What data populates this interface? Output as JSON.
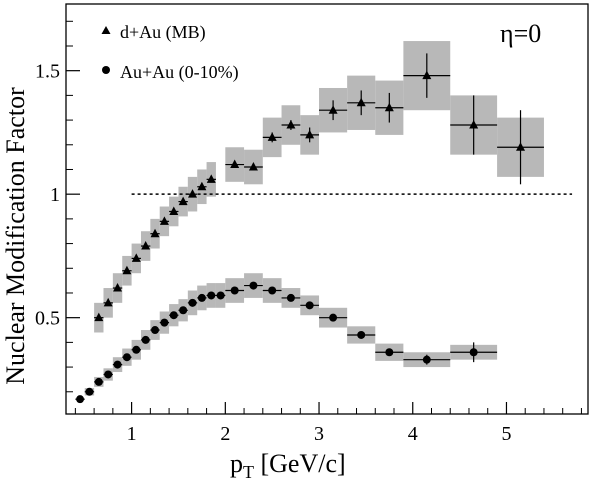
{
  "chart_data": {
    "type": "scatter",
    "title": "",
    "annotation": "η=0",
    "xlabel": {
      "main": "p",
      "sub": "T",
      "rest": " [GeV/c]"
    },
    "ylabel": "Nuclear Modification Factor",
    "xlim": [
      0.3,
      5.87
    ],
    "ylim": [
      0.11,
      1.77
    ],
    "x_ticks": [
      {
        "v": 1,
        "label": "1"
      },
      {
        "v": 2,
        "label": "2"
      },
      {
        "v": 3,
        "label": "3"
      },
      {
        "v": 4,
        "label": "4"
      },
      {
        "v": 5,
        "label": "5"
      }
    ],
    "y_ticks": [
      {
        "v": 0.5,
        "label": "0.5"
      },
      {
        "v": 1.0,
        "label": "1"
      },
      {
        "v": 1.5,
        "label": "1.5"
      }
    ],
    "reference_line": {
      "y": 1.0,
      "x_from": 1.0,
      "x_to": 5.7,
      "style": "dotted"
    },
    "colors": {
      "marker": "#000000",
      "band": "#b8b8b8",
      "frame": "#000000"
    },
    "legend": {
      "placement": "top-left"
    },
    "series": [
      {
        "name": "d+Au (MB)",
        "marker": "triangle",
        "points": [
          {
            "x": 0.65,
            "y": 0.5,
            "xerr": 0.05,
            "yerr": 0.0,
            "sys": 0.06
          },
          {
            "x": 0.75,
            "y": 0.56,
            "xerr": 0.05,
            "yerr": 0.0,
            "sys": 0.06
          },
          {
            "x": 0.85,
            "y": 0.62,
            "xerr": 0.05,
            "yerr": 0.0,
            "sys": 0.06
          },
          {
            "x": 0.95,
            "y": 0.69,
            "xerr": 0.05,
            "yerr": 0.0,
            "sys": 0.06
          },
          {
            "x": 1.05,
            "y": 0.74,
            "xerr": 0.05,
            "yerr": 0.0,
            "sys": 0.06
          },
          {
            "x": 1.15,
            "y": 0.79,
            "xerr": 0.05,
            "yerr": 0.0,
            "sys": 0.06
          },
          {
            "x": 1.25,
            "y": 0.84,
            "xerr": 0.05,
            "yerr": 0.0,
            "sys": 0.06
          },
          {
            "x": 1.35,
            "y": 0.89,
            "xerr": 0.05,
            "yerr": 0.0,
            "sys": 0.06
          },
          {
            "x": 1.45,
            "y": 0.93,
            "xerr": 0.05,
            "yerr": 0.0,
            "sys": 0.06
          },
          {
            "x": 1.55,
            "y": 0.97,
            "xerr": 0.05,
            "yerr": 0.0,
            "sys": 0.06
          },
          {
            "x": 1.65,
            "y": 1.0,
            "xerr": 0.05,
            "yerr": 0.0,
            "sys": 0.07
          },
          {
            "x": 1.75,
            "y": 1.03,
            "xerr": 0.05,
            "yerr": 0.0,
            "sys": 0.07
          },
          {
            "x": 1.85,
            "y": 1.06,
            "xerr": 0.05,
            "yerr": 0.0,
            "sys": 0.07
          },
          {
            "x": 2.1,
            "y": 1.12,
            "xerr": 0.1,
            "yerr": 0.01,
            "sys": 0.07
          },
          {
            "x": 2.3,
            "y": 1.11,
            "xerr": 0.1,
            "yerr": 0.01,
            "sys": 0.07
          },
          {
            "x": 2.5,
            "y": 1.23,
            "xerr": 0.1,
            "yerr": 0.02,
            "sys": 0.08
          },
          {
            "x": 2.7,
            "y": 1.28,
            "xerr": 0.1,
            "yerr": 0.02,
            "sys": 0.08
          },
          {
            "x": 2.9,
            "y": 1.24,
            "xerr": 0.1,
            "yerr": 0.03,
            "sys": 0.08
          },
          {
            "x": 3.15,
            "y": 1.34,
            "xerr": 0.15,
            "yerr": 0.04,
            "sys": 0.09
          },
          {
            "x": 3.45,
            "y": 1.37,
            "xerr": 0.15,
            "yerr": 0.05,
            "sys": 0.11
          },
          {
            "x": 3.75,
            "y": 1.35,
            "xerr": 0.15,
            "yerr": 0.06,
            "sys": 0.11
          },
          {
            "x": 4.15,
            "y": 1.48,
            "xerr": 0.25,
            "yerr": 0.09,
            "sys": 0.14
          },
          {
            "x": 4.65,
            "y": 1.28,
            "xerr": 0.25,
            "yerr": 0.12,
            "sys": 0.12
          },
          {
            "x": 5.15,
            "y": 1.19,
            "xerr": 0.25,
            "yerr": 0.15,
            "sys": 0.12
          }
        ]
      },
      {
        "name": "Au+Au (0-10%)",
        "marker": "circle",
        "points": [
          {
            "x": 0.45,
            "y": 0.17,
            "xerr": 0.05,
            "yerr": 0.0,
            "sys": 0.0
          },
          {
            "x": 0.55,
            "y": 0.2,
            "xerr": 0.05,
            "yerr": 0.0,
            "sys": 0.015
          },
          {
            "x": 0.65,
            "y": 0.24,
            "xerr": 0.05,
            "yerr": 0.0,
            "sys": 0.02
          },
          {
            "x": 0.75,
            "y": 0.27,
            "xerr": 0.05,
            "yerr": 0.0,
            "sys": 0.025
          },
          {
            "x": 0.85,
            "y": 0.31,
            "xerr": 0.05,
            "yerr": 0.0,
            "sys": 0.03
          },
          {
            "x": 0.95,
            "y": 0.34,
            "xerr": 0.05,
            "yerr": 0.0,
            "sys": 0.035
          },
          {
            "x": 1.05,
            "y": 0.37,
            "xerr": 0.05,
            "yerr": 0.0,
            "sys": 0.04
          },
          {
            "x": 1.15,
            "y": 0.41,
            "xerr": 0.05,
            "yerr": 0.0,
            "sys": 0.04
          },
          {
            "x": 1.25,
            "y": 0.45,
            "xerr": 0.05,
            "yerr": 0.0,
            "sys": 0.04
          },
          {
            "x": 1.35,
            "y": 0.48,
            "xerr": 0.05,
            "yerr": 0.0,
            "sys": 0.045
          },
          {
            "x": 1.45,
            "y": 0.51,
            "xerr": 0.05,
            "yerr": 0.0,
            "sys": 0.045
          },
          {
            "x": 1.55,
            "y": 0.53,
            "xerr": 0.05,
            "yerr": 0.0,
            "sys": 0.045
          },
          {
            "x": 1.65,
            "y": 0.56,
            "xerr": 0.05,
            "yerr": 0.0,
            "sys": 0.05
          },
          {
            "x": 1.75,
            "y": 0.58,
            "xerr": 0.05,
            "yerr": 0.0,
            "sys": 0.05
          },
          {
            "x": 1.85,
            "y": 0.59,
            "xerr": 0.05,
            "yerr": 0.0,
            "sys": 0.05
          },
          {
            "x": 1.95,
            "y": 0.59,
            "xerr": 0.05,
            "yerr": 0.0,
            "sys": 0.05
          },
          {
            "x": 2.1,
            "y": 0.61,
            "xerr": 0.1,
            "yerr": 0.01,
            "sys": 0.05
          },
          {
            "x": 2.3,
            "y": 0.63,
            "xerr": 0.1,
            "yerr": 0.01,
            "sys": 0.05
          },
          {
            "x": 2.5,
            "y": 0.61,
            "xerr": 0.1,
            "yerr": 0.01,
            "sys": 0.05
          },
          {
            "x": 2.7,
            "y": 0.58,
            "xerr": 0.1,
            "yerr": 0.01,
            "sys": 0.04
          },
          {
            "x": 2.9,
            "y": 0.55,
            "xerr": 0.1,
            "yerr": 0.01,
            "sys": 0.04
          },
          {
            "x": 3.15,
            "y": 0.5,
            "xerr": 0.15,
            "yerr": 0.01,
            "sys": 0.04
          },
          {
            "x": 3.45,
            "y": 0.43,
            "xerr": 0.15,
            "yerr": 0.01,
            "sys": 0.035
          },
          {
            "x": 3.75,
            "y": 0.36,
            "xerr": 0.15,
            "yerr": 0.015,
            "sys": 0.035
          },
          {
            "x": 4.15,
            "y": 0.33,
            "xerr": 0.25,
            "yerr": 0.02,
            "sys": 0.03
          },
          {
            "x": 4.65,
            "y": 0.36,
            "xerr": 0.25,
            "yerr": 0.04,
            "sys": 0.03
          }
        ]
      }
    ]
  }
}
